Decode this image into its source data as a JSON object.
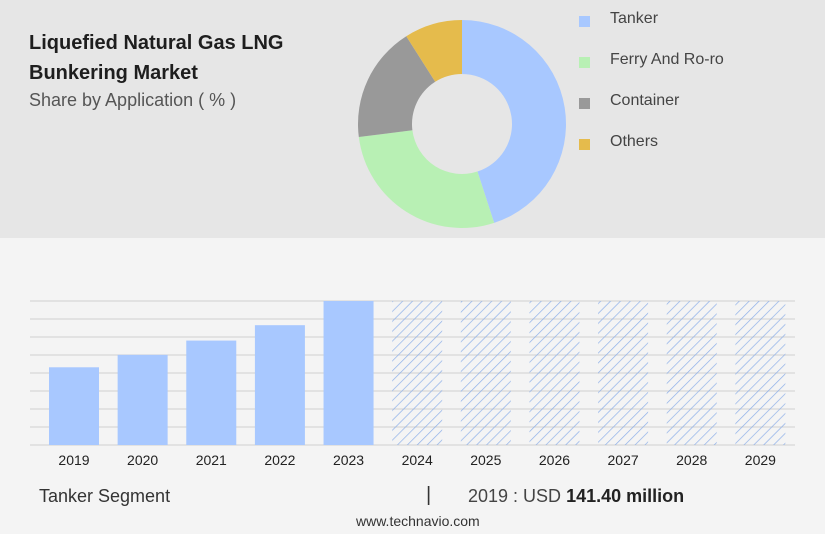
{
  "title": "Liquefied Natural Gas LNG Bunkering Market",
  "subtitle": "Share by Application ( % )",
  "pie": {
    "type": "donut",
    "segments": [
      {
        "name": "Tanker",
        "value": 45,
        "color": "#a8c8ff"
      },
      {
        "name": "Ferry And Ro-ro",
        "value": 28,
        "color": "#b8f0b4"
      },
      {
        "name": "Container",
        "value": 18,
        "color": "#999999"
      },
      {
        "name": "Others",
        "value": 9,
        "color": "#e5bb4c"
      }
    ]
  },
  "chart_data": {
    "type": "bar",
    "categories": [
      "2019",
      "2020",
      "2021",
      "2022",
      "2023",
      "2024",
      "2025",
      "2026",
      "2027",
      "2028",
      "2029"
    ],
    "values": [
      141.4,
      164,
      190,
      218,
      262,
      262,
      262,
      262,
      262,
      262,
      262
    ],
    "forecast_from_index": 5,
    "bar_color": "#a8c8ff",
    "forecast_hatch_color": "#8fb0e8",
    "ylim": [
      0,
      262
    ],
    "grid": true
  },
  "footer": {
    "segment_label": "Tanker Segment",
    "separator": "|",
    "year_prefix": "2019 : USD",
    "value": "141.40 million"
  },
  "source": "www.technavio.com"
}
